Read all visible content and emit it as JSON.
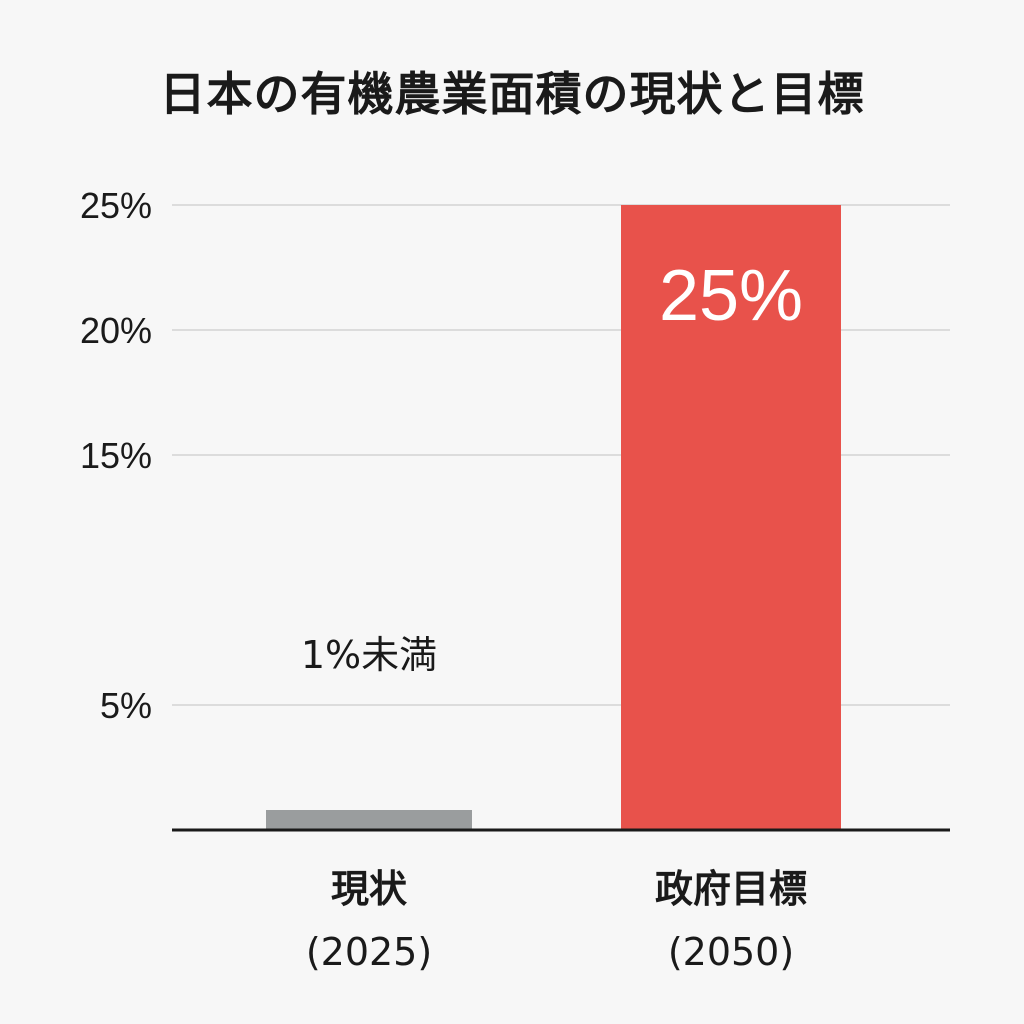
{
  "chart_data": {
    "type": "bar",
    "title": "日本の有機農業面積の現状と目標",
    "categories": [
      {
        "label": "現状",
        "sublabel": "(2025)"
      },
      {
        "label": "政府目標",
        "sublabel": "(2050)"
      }
    ],
    "values": [
      0.8,
      25
    ],
    "data_labels": [
      "1%未満",
      "25%"
    ],
    "bar_colors": [
      "#9a9d9e",
      "#e8524b"
    ],
    "y_ticks": [
      {
        "value": 25,
        "label": "25%"
      },
      {
        "value": 20,
        "label": "20%"
      },
      {
        "value": 15,
        "label": "15%"
      },
      {
        "value": 5,
        "label": "5%"
      }
    ],
    "ylim": [
      0,
      25
    ],
    "grid": true,
    "legend": "none"
  }
}
